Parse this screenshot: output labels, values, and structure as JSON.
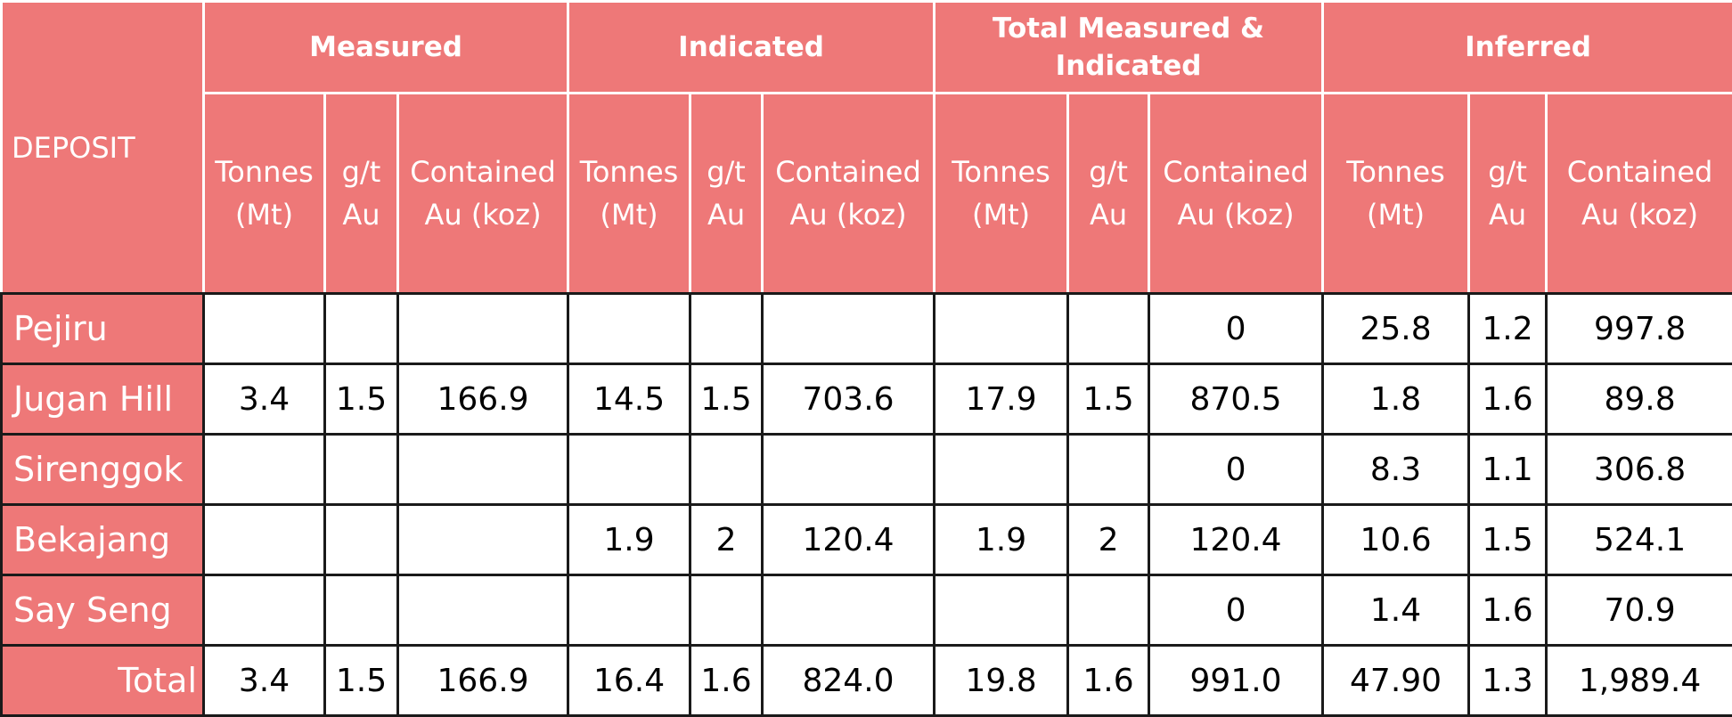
{
  "table": {
    "deposit_label": "DEPOSIT",
    "groups": [
      "Measured",
      "Indicated",
      "Total Measured & Indicated",
      "Inferred"
    ],
    "subheaders": [
      "Tonnes (Mt)",
      "g/t Au",
      "Contained Au (koz)",
      "Tonnes (Mt)",
      "g/t Au",
      "Contained Au (koz)",
      "Tonnes (Mt)",
      "g/t Au",
      "Contained Au (koz)",
      "Tonnes (Mt)",
      "g/t Au",
      "Contained Au (koz)"
    ],
    "rows": [
      {
        "name": "Pejiru",
        "values": [
          "",
          "",
          "",
          "",
          "",
          "",
          "",
          "",
          "0",
          "25.8",
          "1.2",
          "997.8"
        ]
      },
      {
        "name": "Jugan Hill",
        "values": [
          "3.4",
          "1.5",
          "166.9",
          "14.5",
          "1.5",
          "703.6",
          "17.9",
          "1.5",
          "870.5",
          "1.8",
          "1.6",
          "89.8"
        ]
      },
      {
        "name": "Sirenggok",
        "values": [
          "",
          "",
          "",
          "",
          "",
          "",
          "",
          "",
          "0",
          "8.3",
          "1.1",
          "306.8"
        ]
      },
      {
        "name": "Bekajang",
        "values": [
          "",
          "",
          "",
          "1.9",
          "2",
          "120.4",
          "1.9",
          "2",
          "120.4",
          "10.6",
          "1.5",
          "524.1"
        ]
      },
      {
        "name": "Say Seng",
        "values": [
          "",
          "",
          "",
          "",
          "",
          "",
          "",
          "",
          "0",
          "1.4",
          "1.6",
          "70.9"
        ]
      }
    ],
    "total": {
      "name": "Total",
      "values": [
        "3.4",
        "1.5",
        "166.9",
        "16.4",
        "1.6",
        "824.0",
        "19.8",
        "1.6",
        "991.0",
        "47.90",
        "1.3",
        "1,989.4"
      ]
    }
  },
  "colors": {
    "header_bg": "#ee7878",
    "header_text": "#ffffff",
    "grid": "#1a1a1a"
  }
}
